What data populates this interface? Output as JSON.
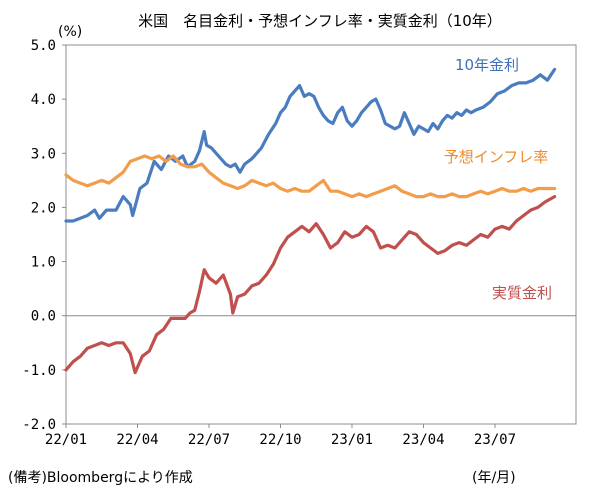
{
  "chart_data": {
    "type": "line",
    "title": "米国　名目金利・予想インフレ率・実質金利（10年）",
    "ylabel": "(%)",
    "xlabel": "(年/月)",
    "source_note": "(備考)Bloombergにより作成",
    "ylim": [
      -2.0,
      5.0
    ],
    "y_ticks": [
      "5.0",
      "4.0",
      "3.0",
      "2.0",
      "1.0",
      "0.0",
      "-1.0",
      "-2.0"
    ],
    "x_tick_labels": [
      "22/01",
      "22/04",
      "22/07",
      "22/10",
      "23/01",
      "23/04",
      "23/07"
    ],
    "x_range_months": [
      0,
      21.4
    ],
    "grid": false,
    "zero_line": true,
    "series": [
      {
        "name": "10年金利",
        "color": "#4a7cc0",
        "label_color": "#3f6fb5",
        "points": [
          [
            0,
            1.75
          ],
          [
            0.3,
            1.75
          ],
          [
            0.6,
            1.8
          ],
          [
            0.9,
            1.85
          ],
          [
            1.2,
            1.95
          ],
          [
            1.4,
            1.8
          ],
          [
            1.7,
            1.95
          ],
          [
            2.1,
            1.95
          ],
          [
            2.4,
            2.2
          ],
          [
            2.7,
            2.05
          ],
          [
            2.8,
            1.85
          ],
          [
            3.1,
            2.35
          ],
          [
            3.4,
            2.45
          ],
          [
            3.7,
            2.85
          ],
          [
            4.0,
            2.7
          ],
          [
            4.3,
            2.95
          ],
          [
            4.6,
            2.85
          ],
          [
            4.9,
            2.95
          ],
          [
            5.1,
            2.75
          ],
          [
            5.4,
            2.85
          ],
          [
            5.6,
            3.05
          ],
          [
            5.8,
            3.4
          ],
          [
            5.9,
            3.15
          ],
          [
            6.1,
            3.1
          ],
          [
            6.4,
            2.95
          ],
          [
            6.7,
            2.8
          ],
          [
            6.9,
            2.75
          ],
          [
            7.1,
            2.8
          ],
          [
            7.3,
            2.65
          ],
          [
            7.5,
            2.8
          ],
          [
            7.8,
            2.9
          ],
          [
            8.0,
            3.0
          ],
          [
            8.2,
            3.1
          ],
          [
            8.5,
            3.35
          ],
          [
            8.8,
            3.55
          ],
          [
            9.0,
            3.75
          ],
          [
            9.2,
            3.85
          ],
          [
            9.4,
            4.05
          ],
          [
            9.6,
            4.15
          ],
          [
            9.8,
            4.25
          ],
          [
            10.0,
            4.05
          ],
          [
            10.2,
            4.1
          ],
          [
            10.4,
            4.05
          ],
          [
            10.6,
            3.85
          ],
          [
            10.8,
            3.7
          ],
          [
            11.0,
            3.6
          ],
          [
            11.2,
            3.55
          ],
          [
            11.4,
            3.75
          ],
          [
            11.6,
            3.85
          ],
          [
            11.8,
            3.6
          ],
          [
            12.0,
            3.5
          ],
          [
            12.2,
            3.6
          ],
          [
            12.4,
            3.75
          ],
          [
            12.6,
            3.85
          ],
          [
            12.8,
            3.95
          ],
          [
            13.0,
            4.0
          ],
          [
            13.2,
            3.8
          ],
          [
            13.4,
            3.55
          ],
          [
            13.6,
            3.5
          ],
          [
            13.8,
            3.45
          ],
          [
            14.0,
            3.5
          ],
          [
            14.2,
            3.75
          ],
          [
            14.4,
            3.55
          ],
          [
            14.6,
            3.35
          ],
          [
            14.8,
            3.5
          ],
          [
            15.0,
            3.45
          ],
          [
            15.2,
            3.4
          ],
          [
            15.4,
            3.55
          ],
          [
            15.6,
            3.45
          ],
          [
            15.8,
            3.6
          ],
          [
            16.0,
            3.7
          ],
          [
            16.2,
            3.65
          ],
          [
            16.4,
            3.75
          ],
          [
            16.6,
            3.7
          ],
          [
            16.8,
            3.8
          ],
          [
            17.0,
            3.75
          ],
          [
            17.2,
            3.8
          ],
          [
            17.5,
            3.85
          ],
          [
            17.8,
            3.95
          ],
          [
            18.1,
            4.1
          ],
          [
            18.4,
            4.15
          ],
          [
            18.7,
            4.25
          ],
          [
            19.0,
            4.3
          ],
          [
            19.3,
            4.3
          ],
          [
            19.6,
            4.35
          ],
          [
            19.9,
            4.45
          ],
          [
            20.2,
            4.35
          ],
          [
            20.5,
            4.55
          ]
        ]
      },
      {
        "name": "予想インフレ率",
        "color": "#f39c4a",
        "label_color": "#f08a2a",
        "points": [
          [
            0,
            2.6
          ],
          [
            0.3,
            2.5
          ],
          [
            0.6,
            2.45
          ],
          [
            0.9,
            2.4
          ],
          [
            1.2,
            2.45
          ],
          [
            1.5,
            2.5
          ],
          [
            1.8,
            2.45
          ],
          [
            2.1,
            2.55
          ],
          [
            2.4,
            2.65
          ],
          [
            2.7,
            2.85
          ],
          [
            3.0,
            2.9
          ],
          [
            3.3,
            2.95
          ],
          [
            3.6,
            2.9
          ],
          [
            3.9,
            2.95
          ],
          [
            4.2,
            2.85
          ],
          [
            4.5,
            2.95
          ],
          [
            4.8,
            2.8
          ],
          [
            5.1,
            2.75
          ],
          [
            5.4,
            2.75
          ],
          [
            5.7,
            2.8
          ],
          [
            6.0,
            2.65
          ],
          [
            6.3,
            2.55
          ],
          [
            6.6,
            2.45
          ],
          [
            6.9,
            2.4
          ],
          [
            7.2,
            2.35
          ],
          [
            7.5,
            2.4
          ],
          [
            7.8,
            2.5
          ],
          [
            8.1,
            2.45
          ],
          [
            8.4,
            2.4
          ],
          [
            8.7,
            2.45
          ],
          [
            9.0,
            2.35
          ],
          [
            9.3,
            2.3
          ],
          [
            9.6,
            2.35
          ],
          [
            9.9,
            2.3
          ],
          [
            10.2,
            2.3
          ],
          [
            10.5,
            2.4
          ],
          [
            10.8,
            2.5
          ],
          [
            11.1,
            2.3
          ],
          [
            11.4,
            2.3
          ],
          [
            11.7,
            2.25
          ],
          [
            12.0,
            2.2
          ],
          [
            12.3,
            2.25
          ],
          [
            12.6,
            2.2
          ],
          [
            12.9,
            2.25
          ],
          [
            13.2,
            2.3
          ],
          [
            13.5,
            2.35
          ],
          [
            13.8,
            2.4
          ],
          [
            14.1,
            2.3
          ],
          [
            14.4,
            2.25
          ],
          [
            14.7,
            2.2
          ],
          [
            15.0,
            2.2
          ],
          [
            15.3,
            2.25
          ],
          [
            15.6,
            2.2
          ],
          [
            15.9,
            2.2
          ],
          [
            16.2,
            2.25
          ],
          [
            16.5,
            2.2
          ],
          [
            16.8,
            2.2
          ],
          [
            17.1,
            2.25
          ],
          [
            17.4,
            2.3
          ],
          [
            17.7,
            2.25
          ],
          [
            18.0,
            2.3
          ],
          [
            18.3,
            2.35
          ],
          [
            18.6,
            2.3
          ],
          [
            18.9,
            2.3
          ],
          [
            19.2,
            2.35
          ],
          [
            19.5,
            2.3
          ],
          [
            19.8,
            2.35
          ],
          [
            20.1,
            2.35
          ],
          [
            20.5,
            2.35
          ]
        ]
      },
      {
        "name": "実質金利",
        "color": "#c0504d",
        "label_color": "#c0504d",
        "points": [
          [
            0,
            -1.0
          ],
          [
            0.3,
            -0.85
          ],
          [
            0.6,
            -0.75
          ],
          [
            0.9,
            -0.6
          ],
          [
            1.2,
            -0.55
          ],
          [
            1.5,
            -0.5
          ],
          [
            1.8,
            -0.55
          ],
          [
            2.1,
            -0.5
          ],
          [
            2.4,
            -0.5
          ],
          [
            2.7,
            -0.7
          ],
          [
            2.9,
            -1.05
          ],
          [
            3.2,
            -0.75
          ],
          [
            3.5,
            -0.65
          ],
          [
            3.8,
            -0.35
          ],
          [
            4.1,
            -0.25
          ],
          [
            4.4,
            -0.05
          ],
          [
            4.7,
            -0.05
          ],
          [
            5.0,
            -0.05
          ],
          [
            5.2,
            0.05
          ],
          [
            5.4,
            0.1
          ],
          [
            5.6,
            0.45
          ],
          [
            5.8,
            0.85
          ],
          [
            6.0,
            0.7
          ],
          [
            6.3,
            0.6
          ],
          [
            6.6,
            0.75
          ],
          [
            6.9,
            0.4
          ],
          [
            7.0,
            0.05
          ],
          [
            7.2,
            0.35
          ],
          [
            7.5,
            0.4
          ],
          [
            7.8,
            0.55
          ],
          [
            8.1,
            0.6
          ],
          [
            8.4,
            0.75
          ],
          [
            8.7,
            0.95
          ],
          [
            9.0,
            1.25
          ],
          [
            9.3,
            1.45
          ],
          [
            9.6,
            1.55
          ],
          [
            9.9,
            1.65
          ],
          [
            10.2,
            1.55
          ],
          [
            10.5,
            1.7
          ],
          [
            10.8,
            1.5
          ],
          [
            11.1,
            1.25
          ],
          [
            11.4,
            1.35
          ],
          [
            11.7,
            1.55
          ],
          [
            12.0,
            1.45
          ],
          [
            12.3,
            1.5
          ],
          [
            12.6,
            1.65
          ],
          [
            12.9,
            1.55
          ],
          [
            13.2,
            1.25
          ],
          [
            13.5,
            1.3
          ],
          [
            13.8,
            1.25
          ],
          [
            14.1,
            1.4
          ],
          [
            14.4,
            1.55
          ],
          [
            14.7,
            1.5
          ],
          [
            15.0,
            1.35
          ],
          [
            15.3,
            1.25
          ],
          [
            15.6,
            1.15
          ],
          [
            15.9,
            1.2
          ],
          [
            16.2,
            1.3
          ],
          [
            16.5,
            1.35
          ],
          [
            16.8,
            1.3
          ],
          [
            17.1,
            1.4
          ],
          [
            17.4,
            1.5
          ],
          [
            17.7,
            1.45
          ],
          [
            18.0,
            1.6
          ],
          [
            18.3,
            1.65
          ],
          [
            18.6,
            1.6
          ],
          [
            18.9,
            1.75
          ],
          [
            19.2,
            1.85
          ],
          [
            19.5,
            1.95
          ],
          [
            19.8,
            2.0
          ],
          [
            20.1,
            2.1
          ],
          [
            20.5,
            2.2
          ]
        ]
      }
    ]
  }
}
